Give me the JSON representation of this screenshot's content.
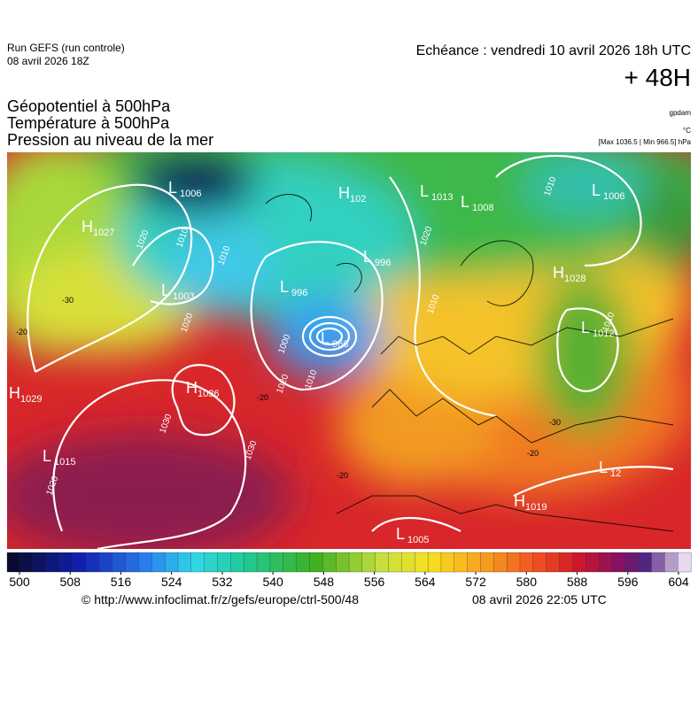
{
  "header": {
    "run": "Run GEFS (run controle)",
    "run_date": "08 avril 2026 18Z",
    "valid": "Echéance : vendredi 10 avril 2026 18h UTC",
    "lead": "+ 48H"
  },
  "titles": [
    "Géopotentiel à 500hPa",
    "Température à 500hPa",
    "Pression au niveau de la mer"
  ],
  "units": {
    "geopotential": "gpdam",
    "temperature": "°C",
    "pressure": "[Max 1036.5 | Min 966.5] hPa"
  },
  "pressure_centers": [
    {
      "letter": "H",
      "value": "1027"
    },
    {
      "letter": "L",
      "value": "1006"
    },
    {
      "letter": "L",
      "value": "1003"
    },
    {
      "letter": "H",
      "value": "1036"
    },
    {
      "letter": "H",
      "value": "1029"
    },
    {
      "letter": "L",
      "value": "1015"
    },
    {
      "letter": "L",
      "value": "996"
    },
    {
      "letter": "L",
      "value": "966"
    },
    {
      "letter": "H",
      "value": "102"
    },
    {
      "letter": "L",
      "value": "996"
    },
    {
      "letter": "L",
      "value": "1013"
    },
    {
      "letter": "L",
      "value": "1008"
    },
    {
      "letter": "L",
      "value": "1006"
    },
    {
      "letter": "H",
      "value": "1028"
    },
    {
      "letter": "L",
      "value": "1012"
    },
    {
      "letter": "L",
      "value": "12"
    },
    {
      "letter": "H",
      "value": "1019"
    },
    {
      "letter": "L",
      "value": "1005"
    }
  ],
  "isobar_labels": [
    "1020",
    "1010",
    "1010",
    "1020",
    "1000",
    "1010",
    "1020",
    "1030",
    "1030",
    "1020",
    "1010",
    "1020",
    "1010",
    "1010"
  ],
  "temperature_labels": [
    "-30",
    "-20",
    "-20",
    "-20",
    "-30",
    "-20"
  ],
  "colorbar": {
    "ticks": [
      500,
      508,
      516,
      524,
      532,
      540,
      548,
      556,
      564,
      572,
      580,
      588,
      596,
      604
    ]
  },
  "footer": {
    "url": "© http://www.infoclimat.fr/z/gefs/europe/ctrl-500/48",
    "date": "08 avril 2026 22:05 UTC"
  }
}
